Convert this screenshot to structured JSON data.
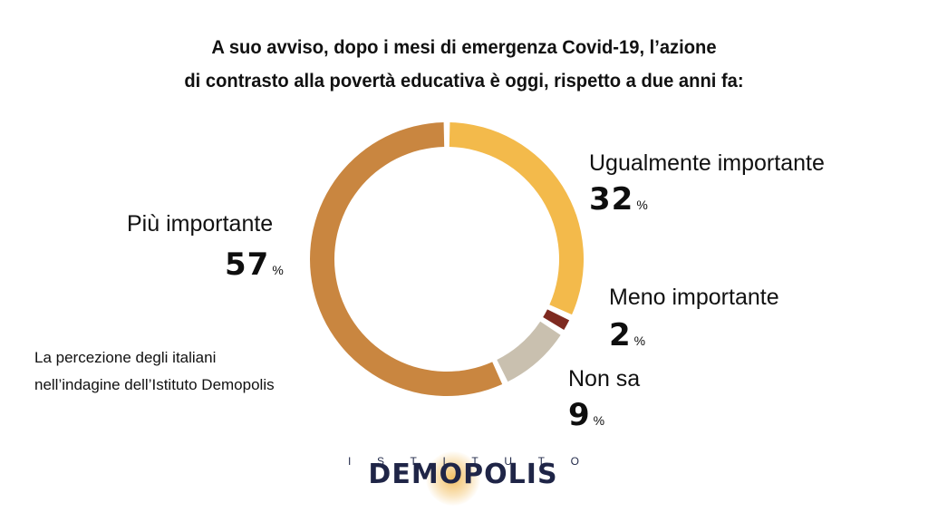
{
  "title": {
    "line1": "A suo avviso, dopo i mesi di emergenza Covid-19, l’azione",
    "line2": "di contrasto alla povertà educativa è oggi, rispetto a due anni fa:"
  },
  "chart_data": {
    "type": "pie",
    "style": "donut",
    "title": "A suo avviso, dopo i mesi di emergenza Covid-19, l’azione di contrasto alla povertà educativa è oggi, rispetto a due anni fa:",
    "unit": "%",
    "slices": [
      {
        "label": "Ugualmente importante",
        "value": 32,
        "display": "32",
        "color": "#F3BA4B"
      },
      {
        "label": "Meno importante",
        "value": 2,
        "display": "2",
        "color": "#7E2A20"
      },
      {
        "label": "Non sa",
        "value": 9,
        "display": "9",
        "color": "#C9C0AF"
      },
      {
        "label": "Più importante",
        "value": 57,
        "display": "57",
        "color": "#C98640"
      }
    ]
  },
  "pct_symbol": "%",
  "note": {
    "line1": "La percezione degli italiani",
    "line2": "nell’indagine dell’Istituto Demopolis"
  },
  "logo": {
    "top_letters": [
      "I",
      "S",
      "T",
      "I",
      "T",
      "U",
      "T",
      "O"
    ],
    "name": "DEMOPOLIS",
    "glow_color": "#F0B446"
  }
}
